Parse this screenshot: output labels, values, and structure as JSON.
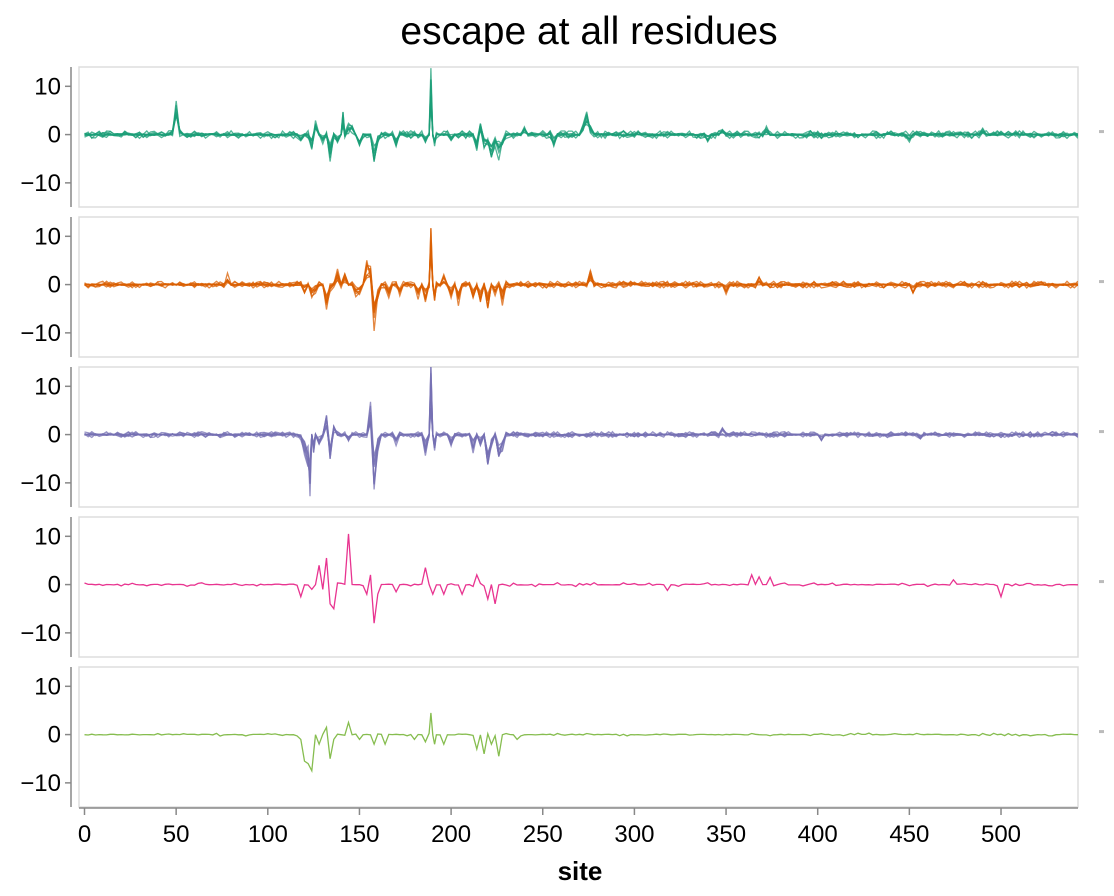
{
  "chart_data": {
    "type": "line",
    "title": "escape at all residues",
    "xlabel": "site",
    "ylabel": "",
    "xlim": [
      -3,
      542
    ],
    "ylim": [
      -15,
      14
    ],
    "x_ticks": [
      0,
      50,
      100,
      150,
      200,
      250,
      300,
      350,
      400,
      450,
      500
    ],
    "y_ticks": [
      10,
      0,
      -10
    ],
    "grid": false,
    "panels": [
      {
        "color": "#1b9e77",
        "spikes": [
          [
            48,
            0.5
          ],
          [
            50,
            7
          ],
          [
            52,
            0.5
          ],
          [
            118,
            -1
          ],
          [
            124,
            -3
          ],
          [
            126,
            2.5
          ],
          [
            130,
            -2
          ],
          [
            134,
            -6
          ],
          [
            138,
            -1.5
          ],
          [
            141,
            4.5
          ],
          [
            144,
            2
          ],
          [
            146,
            2
          ],
          [
            150,
            -2
          ],
          [
            158,
            -6
          ],
          [
            160,
            -1.5
          ],
          [
            170,
            -2
          ],
          [
            186,
            -2
          ],
          [
            189,
            14
          ],
          [
            191,
            -2.5
          ],
          [
            200,
            -1
          ],
          [
            214,
            -3
          ],
          [
            216,
            2
          ],
          [
            218,
            -3
          ],
          [
            220,
            -2
          ],
          [
            222,
            -5
          ],
          [
            224,
            -2
          ],
          [
            226,
            -5
          ],
          [
            228,
            -2
          ],
          [
            240,
            1.2
          ],
          [
            256,
            -2
          ],
          [
            272,
            2
          ],
          [
            274,
            5.5
          ],
          [
            276,
            1.5
          ],
          [
            340,
            -1.2
          ],
          [
            348,
            1.2
          ],
          [
            372,
            1.4
          ],
          [
            450,
            -1.2
          ],
          [
            490,
            1
          ]
        ],
        "noise": 0.8,
        "traces": 8
      },
      {
        "color": "#d95f02",
        "spikes": [
          [
            78,
            2
          ],
          [
            120,
            -1.5
          ],
          [
            124,
            -3
          ],
          [
            126,
            -1.5
          ],
          [
            132,
            -5
          ],
          [
            134,
            -1
          ],
          [
            138,
            3
          ],
          [
            142,
            2
          ],
          [
            148,
            -2
          ],
          [
            150,
            -2
          ],
          [
            154,
            5
          ],
          [
            156,
            4
          ],
          [
            158,
            -9.5
          ],
          [
            160,
            -3
          ],
          [
            166,
            -3
          ],
          [
            172,
            -2
          ],
          [
            182,
            -3
          ],
          [
            186,
            -4
          ],
          [
            189,
            12.5
          ],
          [
            191,
            -3.5
          ],
          [
            196,
            2
          ],
          [
            200,
            -3
          ],
          [
            204,
            -4
          ],
          [
            212,
            -3
          ],
          [
            216,
            -4
          ],
          [
            220,
            -5
          ],
          [
            224,
            -2
          ],
          [
            228,
            -4
          ],
          [
            276,
            3
          ],
          [
            350,
            -1.5
          ],
          [
            368,
            1.2
          ],
          [
            452,
            -1.5
          ]
        ],
        "noise": 0.7,
        "traces": 8
      },
      {
        "color": "#7570b3",
        "spikes": [
          [
            118,
            -1
          ],
          [
            120,
            -4
          ],
          [
            122,
            -7
          ],
          [
            123,
            -13
          ],
          [
            125,
            -4
          ],
          [
            128,
            -2
          ],
          [
            132,
            4
          ],
          [
            134,
            -6
          ],
          [
            136,
            2
          ],
          [
            144,
            -1
          ],
          [
            156,
            6.5
          ],
          [
            158,
            -11
          ],
          [
            160,
            -3
          ],
          [
            170,
            -2
          ],
          [
            186,
            -4
          ],
          [
            189,
            14
          ],
          [
            191,
            -4
          ],
          [
            200,
            -2
          ],
          [
            212,
            -4
          ],
          [
            216,
            -2
          ],
          [
            220,
            -7
          ],
          [
            222,
            -3
          ],
          [
            226,
            -5
          ],
          [
            228,
            -3
          ],
          [
            348,
            1
          ],
          [
            402,
            -1
          ],
          [
            456,
            -1.2
          ]
        ],
        "noise": 0.6,
        "traces": 8
      },
      {
        "color": "#e7298a",
        "spikes": [
          [
            118,
            -2.5
          ],
          [
            124,
            -1
          ],
          [
            128,
            4
          ],
          [
            130,
            -1
          ],
          [
            132,
            5.5
          ],
          [
            134,
            -4
          ],
          [
            136,
            -5
          ],
          [
            144,
            10.5
          ],
          [
            150,
            0
          ],
          [
            154,
            -2
          ],
          [
            156,
            2
          ],
          [
            158,
            -8
          ],
          [
            160,
            -2
          ],
          [
            170,
            -1.5
          ],
          [
            186,
            3.5
          ],
          [
            190,
            -2
          ],
          [
            196,
            -2
          ],
          [
            206,
            -2
          ],
          [
            214,
            2
          ],
          [
            220,
            -3
          ],
          [
            224,
            -4
          ],
          [
            318,
            -1.2
          ],
          [
            364,
            2
          ],
          [
            368,
            1.6
          ],
          [
            374,
            1.5
          ],
          [
            474,
            1
          ],
          [
            500,
            -2.5
          ]
        ],
        "noise": 0.4,
        "traces": 1
      },
      {
        "color": "#80b946",
        "spikes": [
          [
            118,
            -1
          ],
          [
            120,
            -5.5
          ],
          [
            122,
            -6
          ],
          [
            124,
            -7.5
          ],
          [
            128,
            -2
          ],
          [
            132,
            1.5
          ],
          [
            134,
            -5
          ],
          [
            136,
            -1
          ],
          [
            144,
            2.5
          ],
          [
            150,
            -1
          ],
          [
            158,
            -2
          ],
          [
            164,
            -2
          ],
          [
            180,
            -1
          ],
          [
            186,
            -1.5
          ],
          [
            189,
            4.5
          ],
          [
            191,
            -2
          ],
          [
            196,
            -2
          ],
          [
            214,
            -3
          ],
          [
            218,
            -4
          ],
          [
            222,
            -2
          ],
          [
            226,
            -4.5
          ],
          [
            236,
            -1
          ]
        ],
        "noise": 0.3,
        "traces": 1
      }
    ]
  }
}
